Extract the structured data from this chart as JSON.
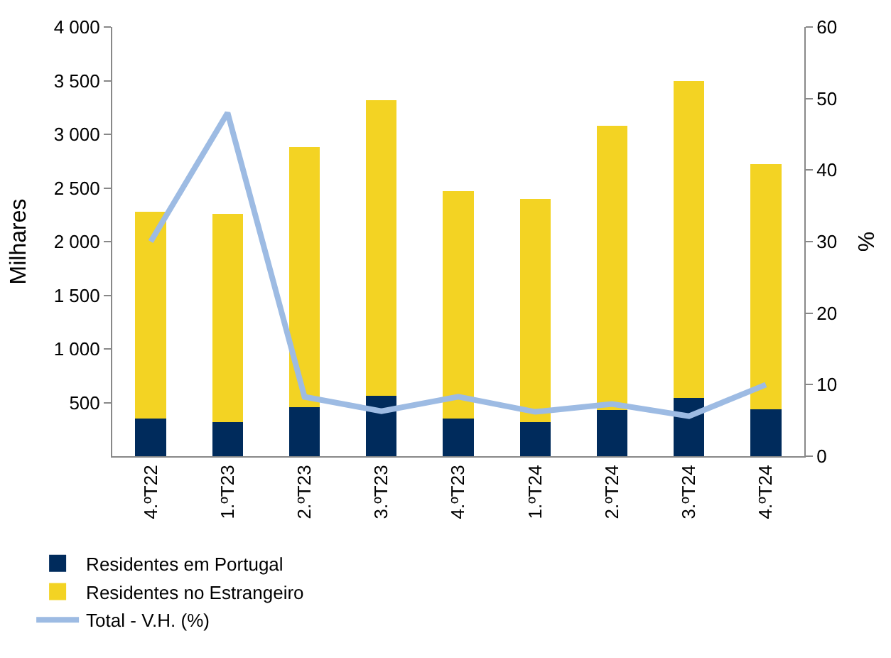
{
  "chart_data": {
    "type": "bar",
    "stacked": true,
    "ylabel": "Milhares",
    "y2label": "%",
    "categories": [
      "4.ºT22",
      "1.ºT23",
      "2.ºT23",
      "3.ºT23",
      "4.ºT23",
      "1.ºT24",
      "2.ºT24",
      "3.ºT24",
      "4.ºT24"
    ],
    "series": [
      {
        "name": "Residentes em Portugal",
        "color": "#002b5c",
        "values": [
          350,
          320,
          460,
          560,
          350,
          320,
          430,
          540,
          440
        ]
      },
      {
        "name": "Residentes no Estrangeiro",
        "color": "#f3d323",
        "values": [
          1930,
          1940,
          2420,
          2760,
          2120,
          2080,
          2650,
          2960,
          2280
        ]
      },
      {
        "name": "Total - V.H. (%)",
        "type": "line",
        "axis": "y2",
        "color": "#9dbbe3",
        "values": [
          30,
          48,
          8.3,
          6.3,
          8.3,
          6.2,
          7.3,
          5.6,
          10
        ]
      }
    ],
    "ylim": [
      0,
      4000
    ],
    "yticks": [
      500,
      {
        "value": 1000,
        "label": "1 000"
      },
      {
        "value": 1500,
        "label": "1 500"
      },
      {
        "value": 2000,
        "label": "2 000"
      },
      {
        "value": 2500,
        "label": "2 500"
      },
      {
        "value": 3000,
        "label": "3 000"
      },
      {
        "value": 3500,
        "label": "3 500"
      },
      {
        "value": 4000,
        "label": "4 000"
      }
    ],
    "y2lim": [
      0,
      60
    ],
    "y2ticks": [
      0,
      10,
      20,
      30,
      40,
      50,
      60
    ],
    "legend": "bottom"
  }
}
